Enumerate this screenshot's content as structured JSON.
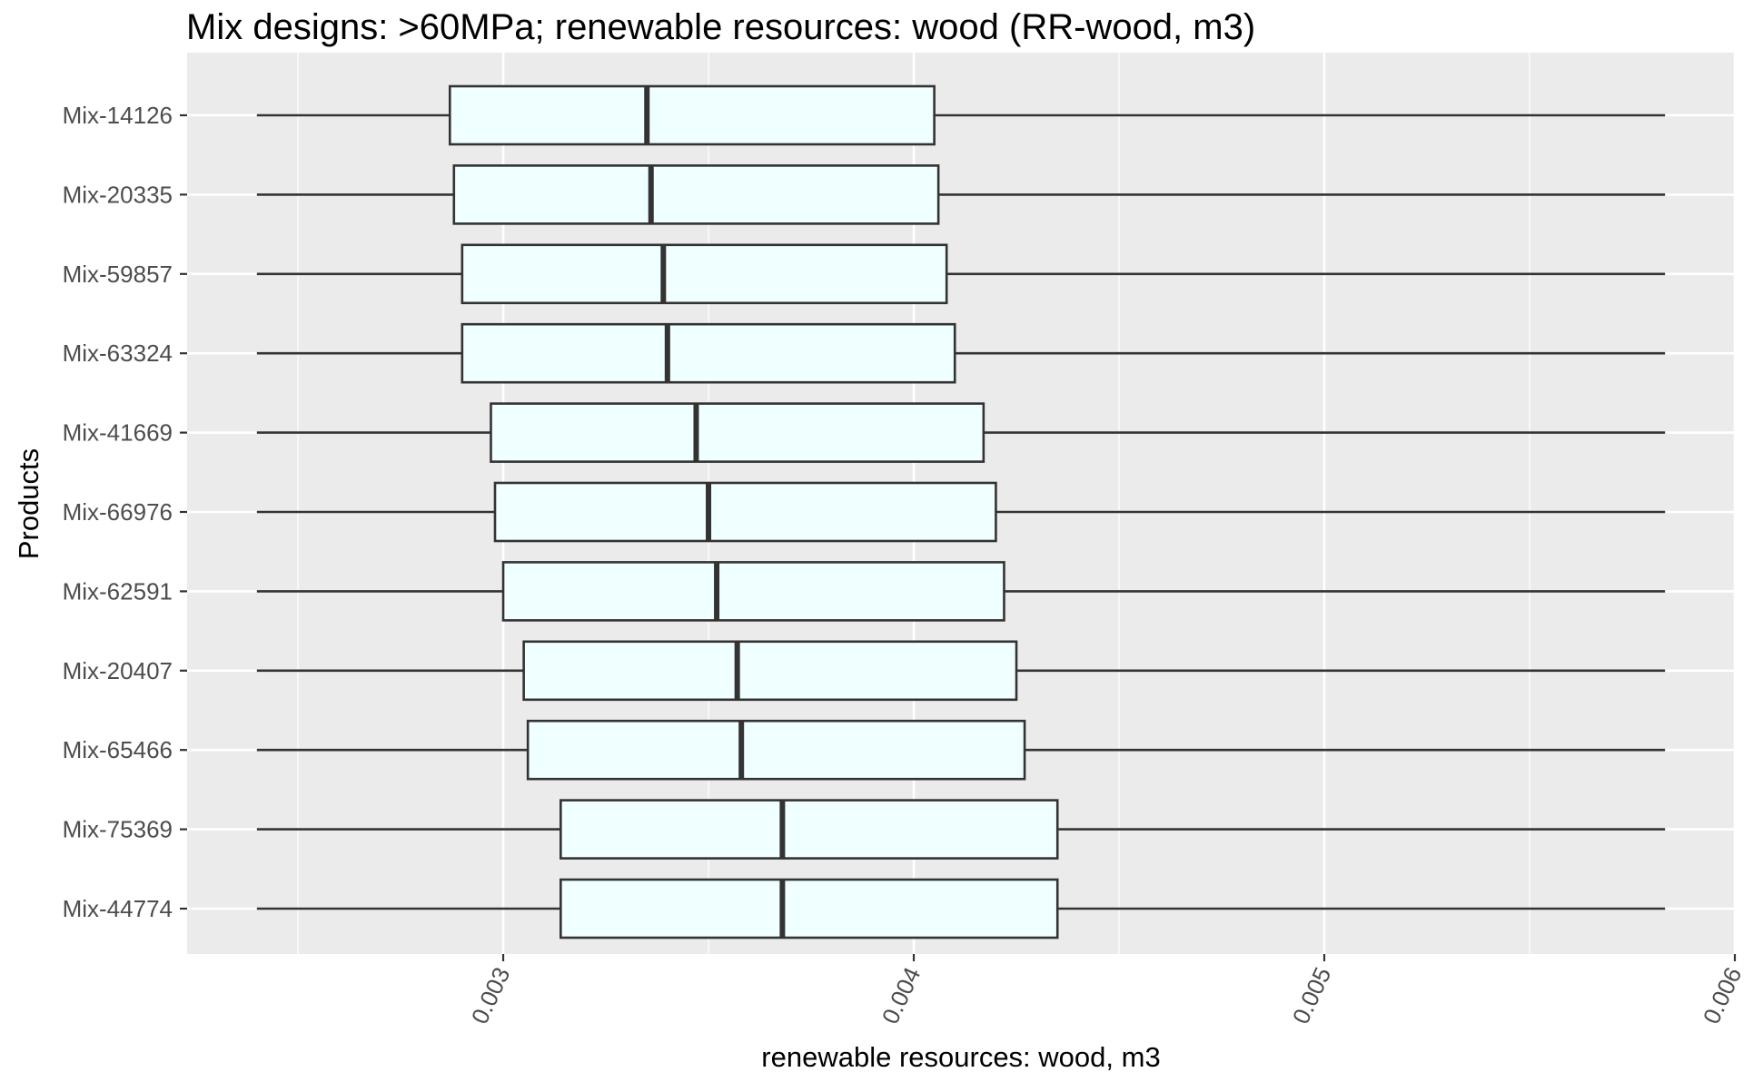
{
  "chart_data": {
    "type": "boxplot",
    "title": "Mix designs: >60MPa; renewable resources: wood (RR-wood, m3)",
    "xlabel": "renewable resources: wood, m3",
    "ylabel": "Products",
    "xlim": [
      0.00223,
      0.006
    ],
    "x_ticks": [
      0.003,
      0.004,
      0.005,
      0.006
    ],
    "x_tick_labels": [
      "0.003",
      "0.004",
      "0.005",
      "0.006"
    ],
    "x_minor_gridlines": [
      0.0025,
      0.0035,
      0.0045,
      0.0055
    ],
    "grid": true,
    "legend": "none",
    "categories": [
      "Mix-14126",
      "Mix-20335",
      "Mix-59857",
      "Mix-63324",
      "Mix-41669",
      "Mix-66976",
      "Mix-62591",
      "Mix-20407",
      "Mix-65466",
      "Mix-75369",
      "Mix-44774"
    ],
    "boxes": [
      {
        "category": "Mix-14126",
        "whisker_low": 0.0024,
        "q1": 0.00287,
        "median": 0.00335,
        "q3": 0.00405,
        "whisker_high": 0.00583
      },
      {
        "category": "Mix-20335",
        "whisker_low": 0.0024,
        "q1": 0.00288,
        "median": 0.00336,
        "q3": 0.00406,
        "whisker_high": 0.00583
      },
      {
        "category": "Mix-59857",
        "whisker_low": 0.0024,
        "q1": 0.0029,
        "median": 0.00339,
        "q3": 0.00408,
        "whisker_high": 0.00583
      },
      {
        "category": "Mix-63324",
        "whisker_low": 0.0024,
        "q1": 0.0029,
        "median": 0.0034,
        "q3": 0.0041,
        "whisker_high": 0.00583
      },
      {
        "category": "Mix-41669",
        "whisker_low": 0.0024,
        "q1": 0.00297,
        "median": 0.00347,
        "q3": 0.00417,
        "whisker_high": 0.00583
      },
      {
        "category": "Mix-66976",
        "whisker_low": 0.0024,
        "q1": 0.00298,
        "median": 0.0035,
        "q3": 0.0042,
        "whisker_high": 0.00583
      },
      {
        "category": "Mix-62591",
        "whisker_low": 0.0024,
        "q1": 0.003,
        "median": 0.00352,
        "q3": 0.00422,
        "whisker_high": 0.00583
      },
      {
        "category": "Mix-20407",
        "whisker_low": 0.0024,
        "q1": 0.00305,
        "median": 0.00357,
        "q3": 0.00425,
        "whisker_high": 0.00583
      },
      {
        "category": "Mix-65466",
        "whisker_low": 0.0024,
        "q1": 0.00306,
        "median": 0.00358,
        "q3": 0.00427,
        "whisker_high": 0.00583
      },
      {
        "category": "Mix-75369",
        "whisker_low": 0.0024,
        "q1": 0.00314,
        "median": 0.00368,
        "q3": 0.00435,
        "whisker_high": 0.00583
      },
      {
        "category": "Mix-44774",
        "whisker_low": 0.0024,
        "q1": 0.00314,
        "median": 0.00368,
        "q3": 0.00435,
        "whisker_high": 0.00583
      }
    ],
    "colors": {
      "panel_background": "#ebebeb",
      "gridline": "#ffffff",
      "box_fill": "#f0ffff",
      "box_stroke": "#333333",
      "tick_label": "#4d4d4d",
      "axis_title": "#000000"
    }
  }
}
